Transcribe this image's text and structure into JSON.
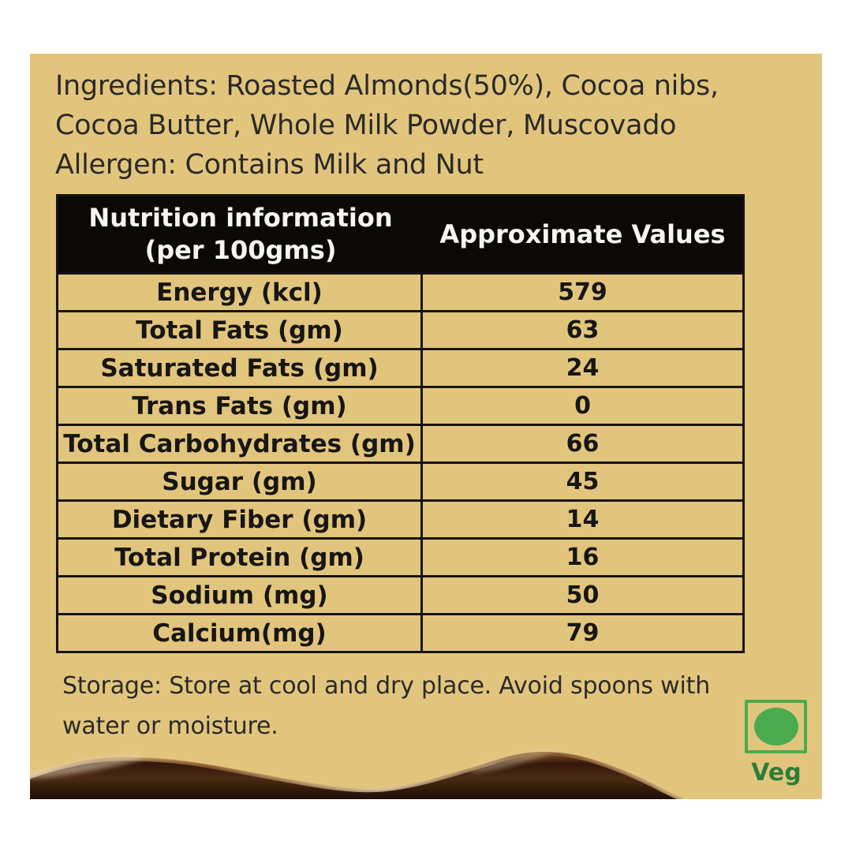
{
  "colors": {
    "panel_bg": "#e2c57d",
    "table_header_bg": "#0b0907",
    "table_header_text": "#f7f5f1",
    "table_border": "#161412",
    "body_text": "#2b2a28",
    "veg_green": "#4aab4e",
    "veg_label_green": "#2f7d38",
    "chocolate_dark": "#2a1507",
    "chocolate_light": "#7d4a1f"
  },
  "ingredients": {
    "lines": [
      "Ingredients: Roasted Almonds(50%), Cocoa nibs,",
      "Cocoa Butter, Whole Milk Powder, Muscovado",
      "Allergen: Contains Milk and Nut"
    ]
  },
  "table": {
    "header": {
      "col1_line1": "Nutrition information",
      "col1_line2": "(per 100gms)",
      "col2": "Approximate Values"
    },
    "rows": [
      {
        "label": "Energy (kcl)",
        "value": "579"
      },
      {
        "label": "Total Fats (gm)",
        "value": "63"
      },
      {
        "label": "Saturated Fats (gm)",
        "value": "24"
      },
      {
        "label": "Trans Fats (gm)",
        "value": "0"
      },
      {
        "label": "Total Carbohydrates (gm)",
        "value": "66"
      },
      {
        "label": "Sugar (gm)",
        "value": "45"
      },
      {
        "label": "Dietary Fiber (gm)",
        "value": "14"
      },
      {
        "label": "Total Protein (gm)",
        "value": "16"
      },
      {
        "label": "Sodium (mg)",
        "value": "50"
      },
      {
        "label": "Calcium(mg)",
        "value": "79"
      }
    ]
  },
  "storage": {
    "lines": [
      "Storage: Store at cool and dry place. Avoid spoons with",
      "water or moisture."
    ]
  },
  "veg_mark": {
    "label": "Veg"
  }
}
